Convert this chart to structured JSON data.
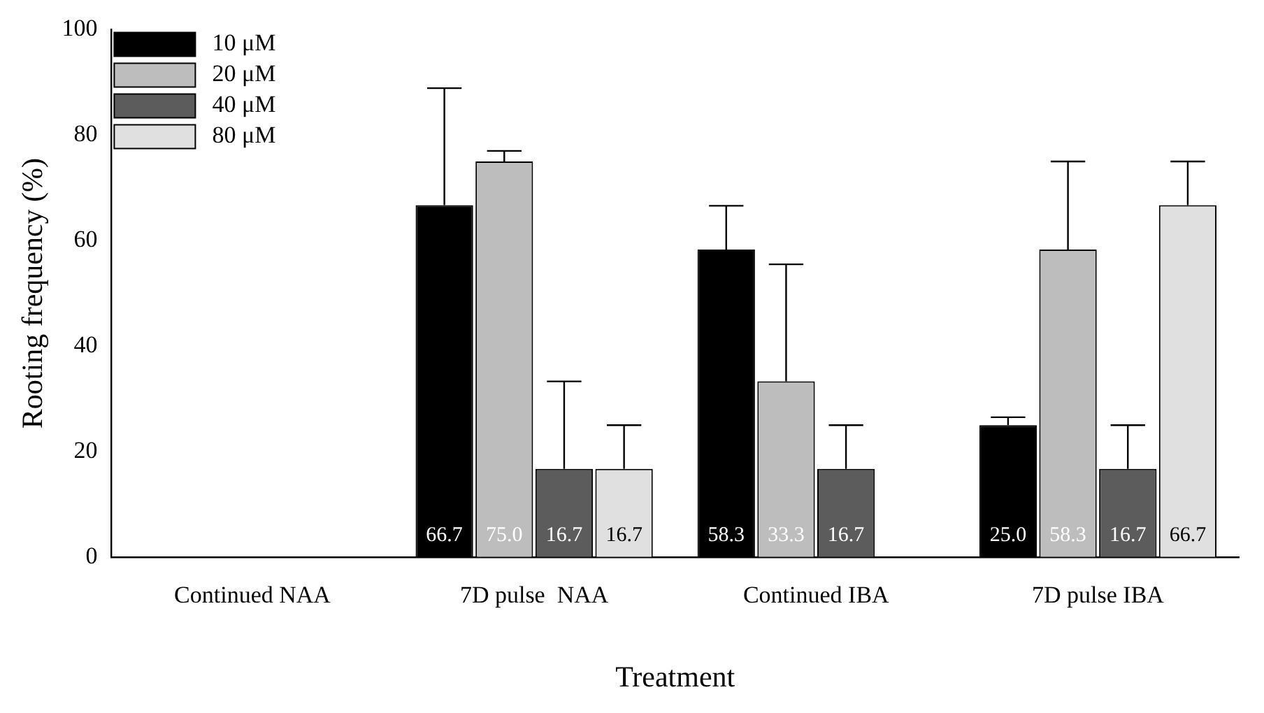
{
  "chart_data": {
    "type": "bar",
    "xlabel": "Treatment",
    "ylabel": "Rooting frequency (%)",
    "categories": [
      "Continued NAA",
      "7D pulse  NAA",
      "Continued IBA",
      "7D pulse IBA"
    ],
    "series": [
      {
        "name": "10 μM",
        "color": "#000000",
        "values": [
          null,
          66.7,
          58.3,
          25.0
        ],
        "value_labels": [
          null,
          "66.7",
          "58.3",
          "25.0"
        ],
        "errors": [
          null,
          [
            66.7,
            88.9
          ],
          [
            58.3,
            66.6
          ],
          [
            25.0,
            26.5
          ]
        ]
      },
      {
        "name": "20 μM",
        "color": "#bdbdbd",
        "values": [
          null,
          75.0,
          33.3,
          58.3
        ],
        "value_labels": [
          null,
          "75.0",
          "33.3",
          "58.3"
        ],
        "errors": [
          null,
          [
            75.0,
            77.0
          ],
          [
            33.3,
            55.5
          ],
          [
            58.3,
            75.0
          ]
        ]
      },
      {
        "name": "40 μM",
        "color": "#5c5c5c",
        "values": [
          null,
          16.7,
          16.7,
          16.7
        ],
        "value_labels": [
          null,
          "16.7",
          "16.7",
          "16.7"
        ],
        "errors": [
          null,
          [
            16.7,
            33.3
          ],
          [
            16.7,
            25.0
          ],
          [
            16.7,
            25.0
          ]
        ]
      },
      {
        "name": "80 μM",
        "color": "#e0e0e0",
        "values": [
          null,
          16.7,
          null,
          66.7
        ],
        "value_labels": [
          null,
          "16.7",
          null,
          "66.7"
        ],
        "errors": [
          null,
          [
            16.7,
            25.0
          ],
          null,
          [
            66.7,
            75.0
          ]
        ]
      }
    ],
    "ylim": [
      0,
      100
    ],
    "yticks": [
      0,
      20,
      40,
      60,
      80,
      100
    ],
    "grid": false,
    "legend": "top left"
  }
}
